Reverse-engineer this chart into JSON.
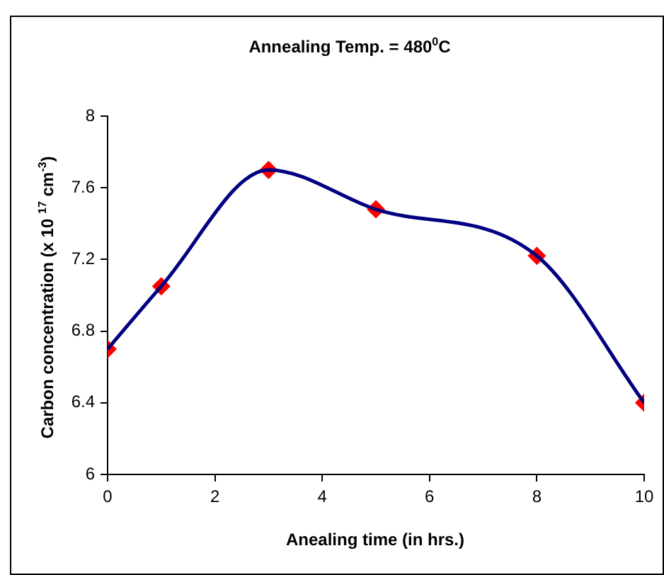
{
  "chart_data": {
    "type": "line",
    "title": "Annealing Temp. = 480$^{0}$C",
    "xlabel": "Anealing time (in hrs.)",
    "ylabel": "Carbon concentration (x 10 $^{17}$ cm$^{-3}$)",
    "x": [
      0,
      1,
      3,
      5,
      8,
      10
    ],
    "series": [
      {
        "color": "#000080",
        "marker": "none",
        "values": [
          6.7,
          7.05,
          7.7,
          7.48,
          7.22,
          6.4
        ]
      },
      {
        "type": "scatter",
        "color": "#ff0000",
        "marker": "diamond",
        "values": [
          6.7,
          7.05,
          7.7,
          7.48,
          7.22,
          6.4
        ]
      }
    ],
    "xlim": [
      0,
      10
    ],
    "xticks": [
      0,
      2,
      4,
      6,
      8,
      10
    ],
    "ylim": [
      6,
      8
    ],
    "yticks": [
      6,
      6.4,
      6.8,
      7.2,
      7.6,
      8
    ],
    "grid": false,
    "legend": false
  }
}
